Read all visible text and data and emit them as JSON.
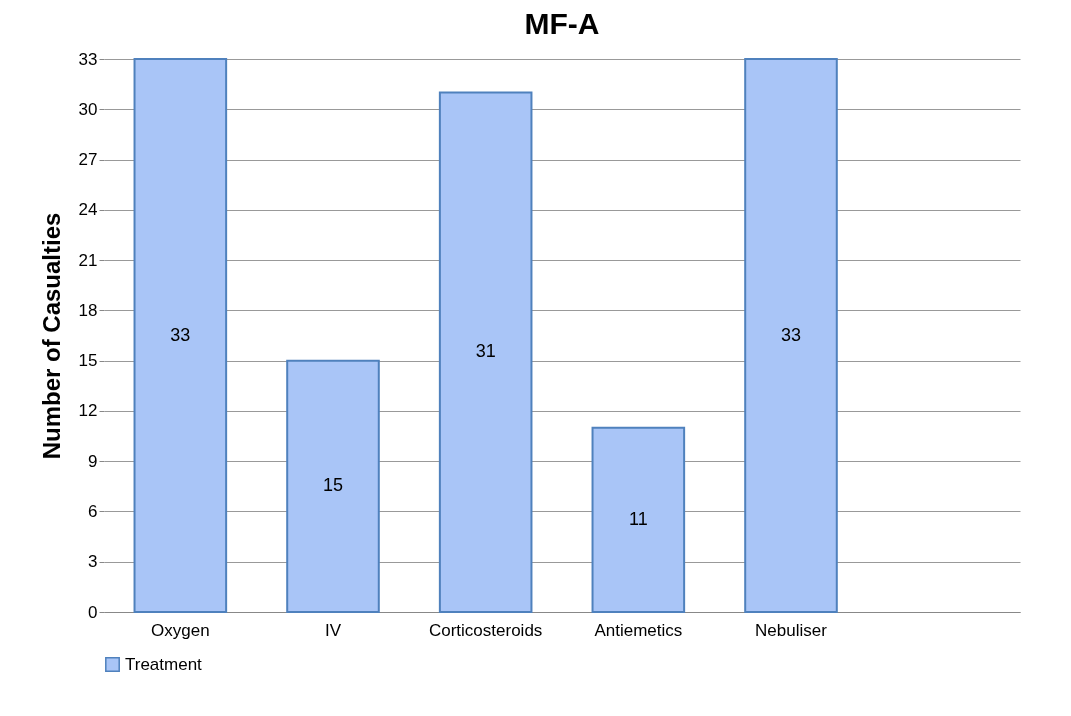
{
  "chart_data": {
    "type": "bar",
    "title": "MF-A",
    "ylabel": "Number of Casualties",
    "categories": [
      "Oxygen",
      "IV",
      "Corticosteroids",
      "Antiemetics",
      "Nebuliser",
      null
    ],
    "series": [
      {
        "name": "Treatment",
        "color": "#a9c5f7",
        "values": [
          33,
          15,
          31,
          11,
          33,
          null
        ]
      }
    ],
    "ylim": [
      0,
      33
    ],
    "yticks": [
      0,
      3,
      6,
      9,
      12,
      15,
      18,
      21,
      24,
      27,
      30,
      33
    ],
    "grid": "y",
    "legend": "bottom",
    "data_labels": true
  }
}
